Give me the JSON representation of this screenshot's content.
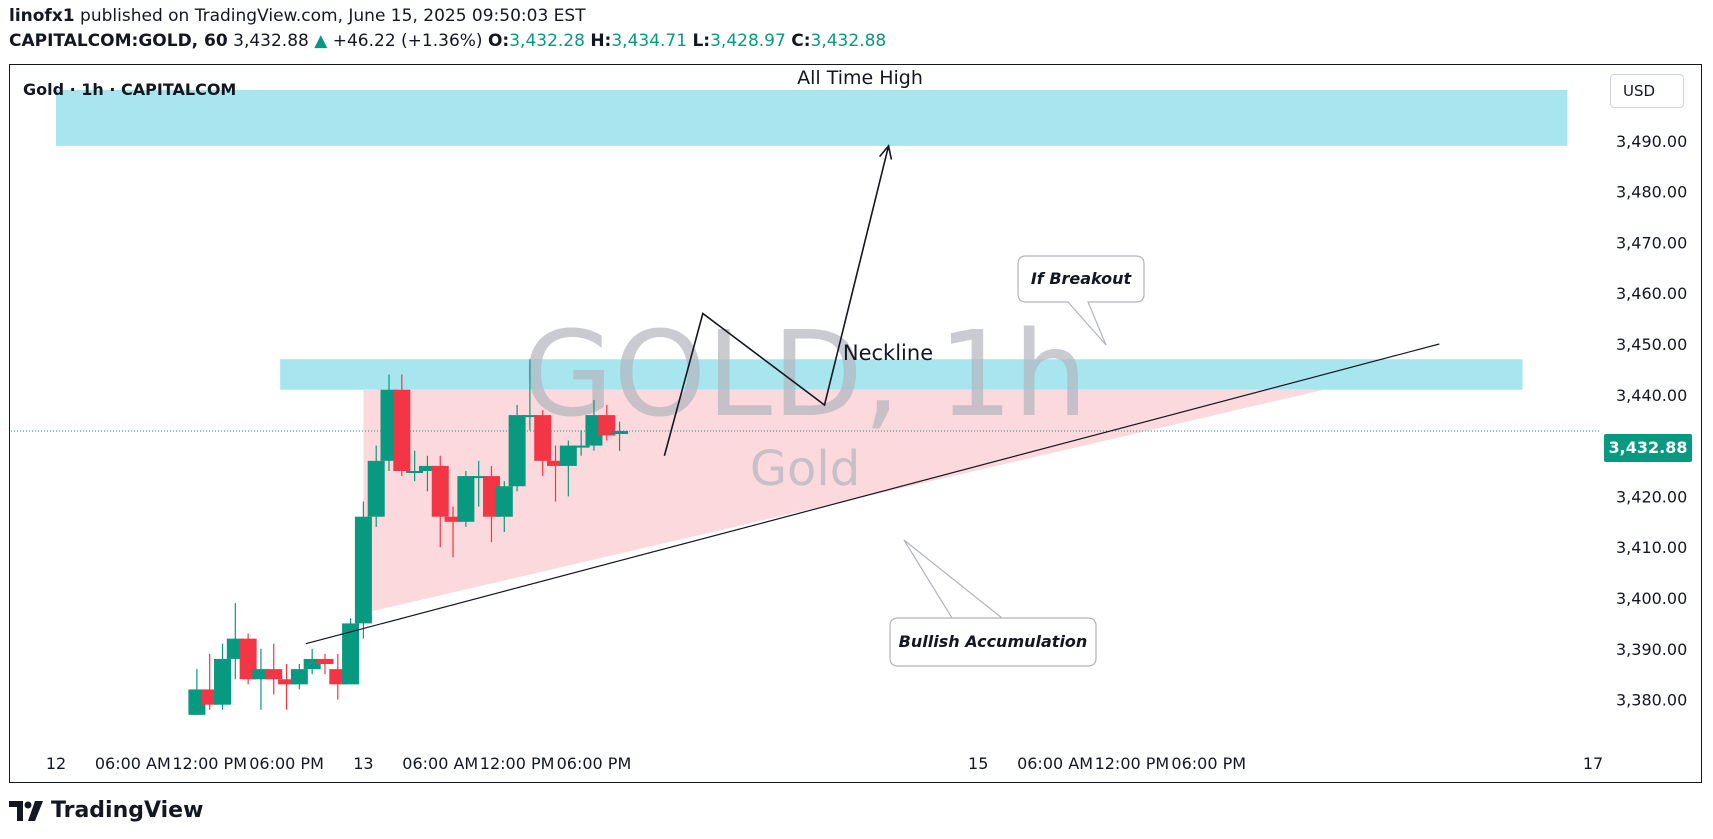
{
  "header": {
    "author": "linofx1",
    "published_text": "published on TradingView.com, June 15, 2025 09:50:03 EST",
    "symbol": "CAPITALCOM:GOLD, 60",
    "last": "3,432.88",
    "change_arrow": "▲",
    "change": "+46.22 (+1.36%)",
    "o_label": "O:",
    "o": "3,432.28",
    "h_label": "H:",
    "h": "3,434.71",
    "l_label": "L:",
    "l": "3,428.97",
    "c_label": "C:",
    "c": "3,432.88"
  },
  "legend": {
    "label": "Gold · 1h · CAPITALCOM"
  },
  "currency": "USD",
  "last_price_tag": "3,432.88",
  "watermark": {
    "main": "GOLD, 1h",
    "sub": "Gold"
  },
  "footer": {
    "brand": "TradingView"
  },
  "colors": {
    "up": "#089981",
    "down": "#f23645",
    "zone": "#a8e6ef",
    "triangle": "#fcd9dc",
    "axis_text": "#131722"
  },
  "chart_data": {
    "type": "candlestick",
    "ylim": [
      3375,
      3500
    ],
    "y_ticks": [
      3380,
      3390,
      3400,
      3410,
      3420,
      3430,
      3440,
      3450,
      3460,
      3470,
      3480,
      3490
    ],
    "y_tick_labels": [
      "3,380.00",
      "3,390.00",
      "3,400.00",
      "3,410.00",
      "3,420.00",
      "3,430.00",
      "3,440.00",
      "3,450.00",
      "3,460.00",
      "3,470.00",
      "3,480.00",
      "3,490.00"
    ],
    "x_time_range_hours": [
      0,
      120
    ],
    "x_tick_hours": [
      0,
      6,
      12,
      18,
      24,
      30,
      36,
      42,
      72,
      78,
      84,
      90,
      120
    ],
    "x_tick_labels": [
      "12",
      "06:00 AM",
      "12:00 PM",
      "06:00 PM",
      "13",
      "06:00 AM",
      "12:00 PM",
      "06:00 PM",
      "15",
      "06:00 AM",
      "12:00 PM",
      "06:00 PM",
      "17"
    ],
    "candles": [
      {
        "t": 11,
        "o": 3377,
        "h": 3386,
        "l": 3377,
        "c": 3382
      },
      {
        "t": 12,
        "o": 3382,
        "h": 3389,
        "l": 3378,
        "c": 3379
      },
      {
        "t": 13,
        "o": 3379,
        "h": 3391,
        "l": 3378,
        "c": 3388
      },
      {
        "t": 14,
        "o": 3388,
        "h": 3399,
        "l": 3384,
        "c": 3392
      },
      {
        "t": 15,
        "o": 3392,
        "h": 3393,
        "l": 3383,
        "c": 3384
      },
      {
        "t": 16,
        "o": 3384,
        "h": 3390,
        "l": 3378,
        "c": 3386
      },
      {
        "t": 17,
        "o": 3386,
        "h": 3391,
        "l": 3381,
        "c": 3384
      },
      {
        "t": 18,
        "o": 3384,
        "h": 3387,
        "l": 3378,
        "c": 3383
      },
      {
        "t": 19,
        "o": 3383,
        "h": 3387,
        "l": 3382,
        "c": 3386
      },
      {
        "t": 20,
        "o": 3386,
        "h": 3390,
        "l": 3385,
        "c": 3388
      },
      {
        "t": 21,
        "o": 3388,
        "h": 3389,
        "l": 3385,
        "c": 3387
      },
      {
        "t": 22,
        "o": 3386,
        "h": 3389,
        "l": 3380,
        "c": 3383
      },
      {
        "t": 23,
        "o": 3383,
        "h": 3396,
        "l": 3383,
        "c": 3395
      },
      {
        "t": 24,
        "o": 3395,
        "h": 3419,
        "l": 3392,
        "c": 3416
      },
      {
        "t": 25,
        "o": 3416,
        "h": 3430,
        "l": 3414,
        "c": 3427
      },
      {
        "t": 26,
        "o": 3427,
        "h": 3444,
        "l": 3425,
        "c": 3441
      },
      {
        "t": 27,
        "o": 3441,
        "h": 3444,
        "l": 3424,
        "c": 3425
      },
      {
        "t": 28,
        "o": 3425,
        "h": 3429,
        "l": 3423,
        "c": 3425
      },
      {
        "t": 29,
        "o": 3425,
        "h": 3428,
        "l": 3421,
        "c": 3426
      },
      {
        "t": 30,
        "o": 3426,
        "h": 3428,
        "l": 3410,
        "c": 3416
      },
      {
        "t": 31,
        "o": 3416,
        "h": 3418,
        "l": 3408,
        "c": 3415
      },
      {
        "t": 32,
        "o": 3415,
        "h": 3425,
        "l": 3414,
        "c": 3424
      },
      {
        "t": 33,
        "o": 3424,
        "h": 3427,
        "l": 3418,
        "c": 3424
      },
      {
        "t": 34,
        "o": 3424,
        "h": 3426,
        "l": 3411,
        "c": 3416
      },
      {
        "t": 35,
        "o": 3416,
        "h": 3423,
        "l": 3413,
        "c": 3422
      },
      {
        "t": 36,
        "o": 3422,
        "h": 3438,
        "l": 3421,
        "c": 3436
      },
      {
        "t": 37,
        "o": 3436,
        "h": 3447,
        "l": 3433,
        "c": 3436
      },
      {
        "t": 38,
        "o": 3436,
        "h": 3437,
        "l": 3424,
        "c": 3427
      },
      {
        "t": 39,
        "o": 3427,
        "h": 3430,
        "l": 3419,
        "c": 3426
      },
      {
        "t": 40,
        "o": 3426,
        "h": 3431,
        "l": 3420,
        "c": 3430
      },
      {
        "t": 41,
        "o": 3430,
        "h": 3433,
        "l": 3428,
        "c": 3430
      },
      {
        "t": 42,
        "o": 3430,
        "h": 3439,
        "l": 3429,
        "c": 3436
      },
      {
        "t": 43,
        "o": 3436,
        "h": 3438,
        "l": 3431,
        "c": 3432
      },
      {
        "t": 44,
        "o": 3432.28,
        "h": 3434.71,
        "l": 3428.97,
        "c": 3432.88
      }
    ],
    "zones": [
      {
        "label": "All Time High",
        "t0": 0,
        "t1": 118,
        "y0": 3489,
        "y1": 3500
      },
      {
        "label": "Neckline",
        "t0": 17.5,
        "t1": 114.5,
        "y0": 3441,
        "y1": 3447
      }
    ],
    "triangle": {
      "t_start": 24,
      "t_end": 99,
      "y_top": 3441,
      "y_bottom_start": 3397,
      "y_bottom_end": 3441
    },
    "trendline": {
      "t0": 19.5,
      "y0": 3391,
      "t1": 108,
      "y1": 3450
    },
    "projection": [
      {
        "t": 47.5,
        "y": 3428
      },
      {
        "t": 50.5,
        "y": 3456
      },
      {
        "t": 60,
        "y": 3438
      },
      {
        "t": 65,
        "y": 3489
      }
    ],
    "last_price": 3432.88,
    "annotations": [
      "All Time High",
      "Neckline",
      "If Breakout",
      "Bullish Accumulation"
    ]
  }
}
